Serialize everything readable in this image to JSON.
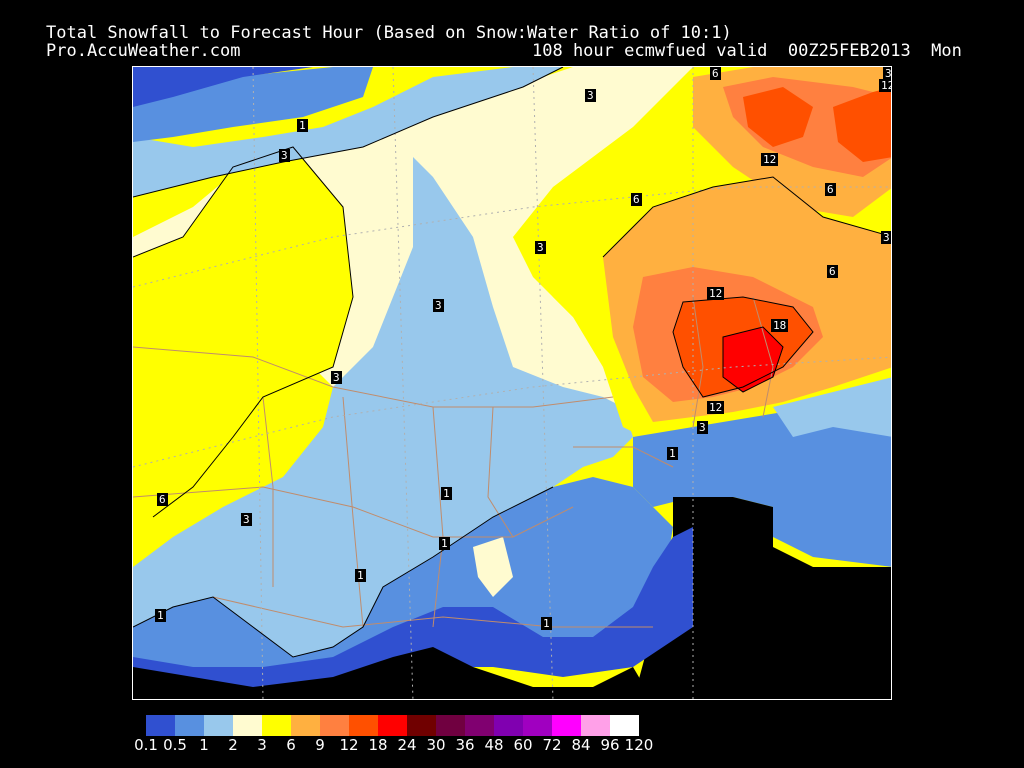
{
  "header": {
    "title": "Total Snowfall to Forecast Hour (Based on Snow:Water Ratio of 10:1)",
    "site": "Pro.AccuWeather.com",
    "valid": "108 hour ecmwfued valid  00Z25FEB2013  Mon"
  },
  "legend": {
    "colors": [
      "#3050d0",
      "#5890e0",
      "#98c8ec",
      "#fffbd0",
      "#ffff00",
      "#ffb040",
      "#ff8040",
      "#ff5000",
      "#ff0000",
      "#700000",
      "#700040",
      "#800070",
      "#8000b0",
      "#a000c0",
      "#ff00ff",
      "#ffa0e8",
      "#ffffff"
    ],
    "labels": [
      "0.1",
      "0.5",
      "1",
      "2",
      "3",
      "6",
      "9",
      "12",
      "18",
      "24",
      "30",
      "36",
      "48",
      "60",
      "72",
      "84",
      "96",
      "120"
    ]
  },
  "contour_labels": [
    {
      "text": "1"
    },
    {
      "text": "3"
    },
    {
      "text": "3"
    },
    {
      "text": "3"
    },
    {
      "text": "3"
    },
    {
      "text": "3"
    },
    {
      "text": "6"
    },
    {
      "text": "3"
    },
    {
      "text": "12"
    },
    {
      "text": "6"
    },
    {
      "text": "12"
    },
    {
      "text": "6"
    },
    {
      "text": "6"
    },
    {
      "text": "3"
    },
    {
      "text": "12"
    },
    {
      "text": "18"
    },
    {
      "text": "12"
    },
    {
      "text": "3"
    },
    {
      "text": "1"
    },
    {
      "text": "1"
    },
    {
      "text": "1"
    },
    {
      "text": "1"
    },
    {
      "text": "1"
    },
    {
      "text": "1"
    },
    {
      "text": "6"
    },
    {
      "text": "3"
    }
  ]
}
